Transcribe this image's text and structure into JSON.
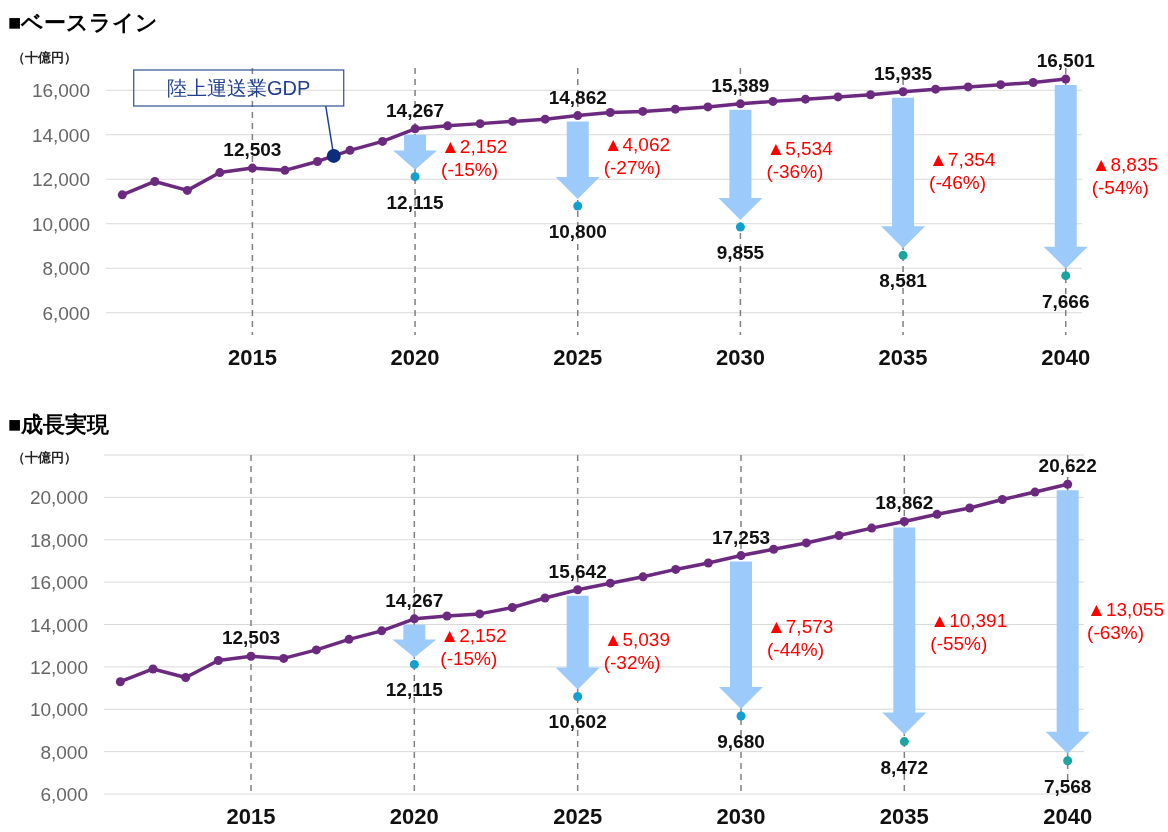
{
  "chart_data": [
    {
      "type": "line",
      "title": "■ベースライン",
      "ylabel": "（十億円）",
      "xlim": [
        2010.5,
        2040.5
      ],
      "xticks": [
        2015,
        2020,
        2025,
        2030,
        2035,
        2040
      ],
      "ylim": [
        5000,
        17000
      ],
      "yticks": [
        {
          "value": 6000,
          "label": "6,000"
        },
        {
          "value": 8000,
          "label": "8,000"
        },
        {
          "value": 10000,
          "label": "10,000"
        },
        {
          "value": 12000,
          "label": "12,000"
        },
        {
          "value": 14000,
          "label": "14,000"
        },
        {
          "value": 16000,
          "label": "16,000"
        }
      ],
      "grid": "y",
      "marker": "circle",
      "series": [
        {
          "name": "陸上運送業GDP",
          "color": "#6b2a7f",
          "x": [
            2011,
            2012,
            2013,
            2014,
            2015,
            2016,
            2017,
            2018,
            2019,
            2020,
            2021,
            2022,
            2023,
            2024,
            2025,
            2026,
            2027,
            2028,
            2029,
            2030,
            2031,
            2032,
            2033,
            2034,
            2035,
            2036,
            2037,
            2038,
            2039,
            2040
          ],
          "values": [
            11300,
            11900,
            11500,
            12300,
            12503,
            12400,
            12800,
            13300,
            13700,
            14267,
            14400,
            14500,
            14600,
            14700,
            14862,
            15000,
            15050,
            15150,
            15250,
            15389,
            15500,
            15600,
            15700,
            15800,
            15935,
            16050,
            16150,
            16250,
            16350,
            16501
          ],
          "value_labels": [
            null,
            null,
            null,
            null,
            "12,503",
            null,
            null,
            null,
            null,
            "14,267",
            null,
            null,
            null,
            null,
            "14,862",
            null,
            null,
            null,
            null,
            "15,389",
            null,
            null,
            null,
            null,
            "15,935",
            null,
            null,
            null,
            null,
            "16,501"
          ]
        },
        {
          "type": "scatter",
          "x": [
            2020,
            2025,
            2030,
            2035,
            2040
          ],
          "colors": [
            "#159fcf",
            "#159fcf",
            "#159fcf",
            "#1ba59f",
            "#1ba59f"
          ],
          "values": [
            12115,
            10800,
            9855,
            8581,
            7666
          ],
          "value_labels": [
            "12,115",
            "10,800",
            "9,855",
            "8,581",
            "7,666"
          ]
        }
      ],
      "ref_lines": [
        {
          "axis": "x",
          "value": 2015,
          "color": "#808080",
          "line_style": "dashed"
        },
        {
          "axis": "x",
          "value": 2020,
          "color": "#808080",
          "line_style": "dashed"
        },
        {
          "axis": "x",
          "value": 2025,
          "color": "#808080",
          "line_style": "dashed"
        },
        {
          "axis": "x",
          "value": 2030,
          "color": "#808080",
          "line_style": "dashed"
        },
        {
          "axis": "x",
          "value": 2035,
          "color": "#808080",
          "line_style": "dashed"
        },
        {
          "axis": "x",
          "value": 2040,
          "color": "#808080",
          "line_style": "dashed"
        }
      ],
      "annotations": [
        {
          "text": "▲2,152\n(-15%)",
          "x": 2020,
          "y": 13000
        },
        {
          "text": "▲4,062\n(-27%)",
          "x": 2025,
          "y": 13100
        },
        {
          "text": "▲5,534\n(-36%)",
          "x": 2030,
          "y": 12900
        },
        {
          "text": "▲7,354\n(-46%)",
          "x": 2035,
          "y": 12400
        },
        {
          "text": "▲8,835\n(-54%)",
          "x": 2040,
          "y": 12200
        }
      ]
    },
    {
      "type": "line",
      "title": "■成長実現",
      "ylabel": "（十億円）",
      "xlim": [
        2010.5,
        2040.5
      ],
      "xticks": [
        2015,
        2020,
        2025,
        2030,
        2035,
        2040
      ],
      "ylim": [
        6000,
        22000
      ],
      "yticks": [
        {
          "value": 6000,
          "label": "6,000"
        },
        {
          "value": 8000,
          "label": "8,000"
        },
        {
          "value": 10000,
          "label": "10,000"
        },
        {
          "value": 12000,
          "label": "12,000"
        },
        {
          "value": 14000,
          "label": "14,000"
        },
        {
          "value": 16000,
          "label": "16,000"
        },
        {
          "value": 18000,
          "label": "18,000"
        },
        {
          "value": 20000,
          "label": "20,000"
        },
        {
          "value": 22000,
          "label": null
        }
      ],
      "grid": "y",
      "marker": "circle",
      "series": [
        {
          "color": "#6b2a7f",
          "x": [
            2011,
            2012,
            2013,
            2014,
            2015,
            2016,
            2017,
            2018,
            2019,
            2020,
            2021,
            2022,
            2023,
            2024,
            2025,
            2026,
            2027,
            2028,
            2029,
            2030,
            2031,
            2032,
            2033,
            2034,
            2035,
            2036,
            2037,
            2038,
            2039,
            2040
          ],
          "values": [
            11300,
            11900,
            11500,
            12300,
            12503,
            12400,
            12800,
            13300,
            13700,
            14267,
            14400,
            14500,
            14800,
            15250,
            15642,
            15950,
            16250,
            16600,
            16900,
            17253,
            17550,
            17850,
            18200,
            18550,
            18862,
            19200,
            19500,
            19900,
            20250,
            20622
          ],
          "value_labels": [
            null,
            null,
            null,
            null,
            "12,503",
            null,
            null,
            null,
            null,
            "14,267",
            null,
            null,
            null,
            null,
            "15,642",
            null,
            null,
            null,
            null,
            "17,253",
            null,
            null,
            null,
            null,
            "18,862",
            null,
            null,
            null,
            null,
            "20,622"
          ]
        },
        {
          "type": "scatter",
          "x": [
            2020,
            2025,
            2030,
            2035,
            2040
          ],
          "colors": [
            "#159fcf",
            "#159fcf",
            "#159fcf",
            "#1ba59f",
            "#1ba59f"
          ],
          "values": [
            12115,
            10602,
            9680,
            8472,
            7568
          ],
          "value_labels": [
            "12,115",
            "10,602",
            "9,680",
            "8,472",
            "7,568"
          ]
        }
      ],
      "ref_lines": [
        {
          "axis": "x",
          "value": 2015,
          "color": "#808080",
          "line_style": "dashed"
        },
        {
          "axis": "x",
          "value": 2020,
          "color": "#808080",
          "line_style": "dashed"
        },
        {
          "axis": "x",
          "value": 2025,
          "color": "#808080",
          "line_style": "dashed"
        },
        {
          "axis": "x",
          "value": 2030,
          "color": "#808080",
          "line_style": "dashed"
        },
        {
          "axis": "x",
          "value": 2035,
          "color": "#808080",
          "line_style": "dashed"
        },
        {
          "axis": "x",
          "value": 2040,
          "color": "#808080",
          "line_style": "dashed"
        }
      ],
      "annotations": [
        {
          "text": "▲2,152\n(-15%)",
          "x": 2020,
          "y": 13000
        },
        {
          "text": "▲5,039\n(-32%)",
          "x": 2025,
          "y": 12800
        },
        {
          "text": "▲7,573\n(-44%)",
          "x": 2030,
          "y": 13400
        },
        {
          "text": "▲10,391\n(-55%)",
          "x": 2035,
          "y": 13700
        },
        {
          "text": "▲13,055\n(-63%)",
          "x": 2040,
          "y": 14200
        }
      ]
    }
  ]
}
